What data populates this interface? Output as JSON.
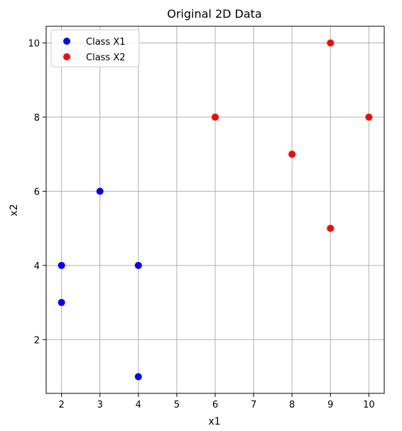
{
  "chart_data": {
    "type": "scatter",
    "title": "Original 2D Data",
    "xlabel": "x1",
    "ylabel": "x2",
    "xlim": [
      1.6,
      10.4
    ],
    "ylim": [
      0.55,
      10.45
    ],
    "xticks": [
      2,
      3,
      4,
      5,
      6,
      7,
      8,
      9,
      10
    ],
    "yticks": [
      2,
      4,
      6,
      8,
      10
    ],
    "grid": true,
    "legend_position": "top-left",
    "series": [
      {
        "name": "Class X1",
        "color": "#0000ff",
        "points": [
          {
            "x": 2,
            "y": 3
          },
          {
            "x": 3,
            "y": 6
          },
          {
            "x": 4,
            "y": 4
          },
          {
            "x": 2,
            "y": 4
          },
          {
            "x": 4,
            "y": 1
          }
        ]
      },
      {
        "name": "Class X2",
        "color": "#ff0000",
        "points": [
          {
            "x": 9,
            "y": 10
          },
          {
            "x": 6,
            "y": 8
          },
          {
            "x": 9,
            "y": 5
          },
          {
            "x": 8,
            "y": 7
          },
          {
            "x": 10,
            "y": 8
          }
        ]
      }
    ]
  }
}
